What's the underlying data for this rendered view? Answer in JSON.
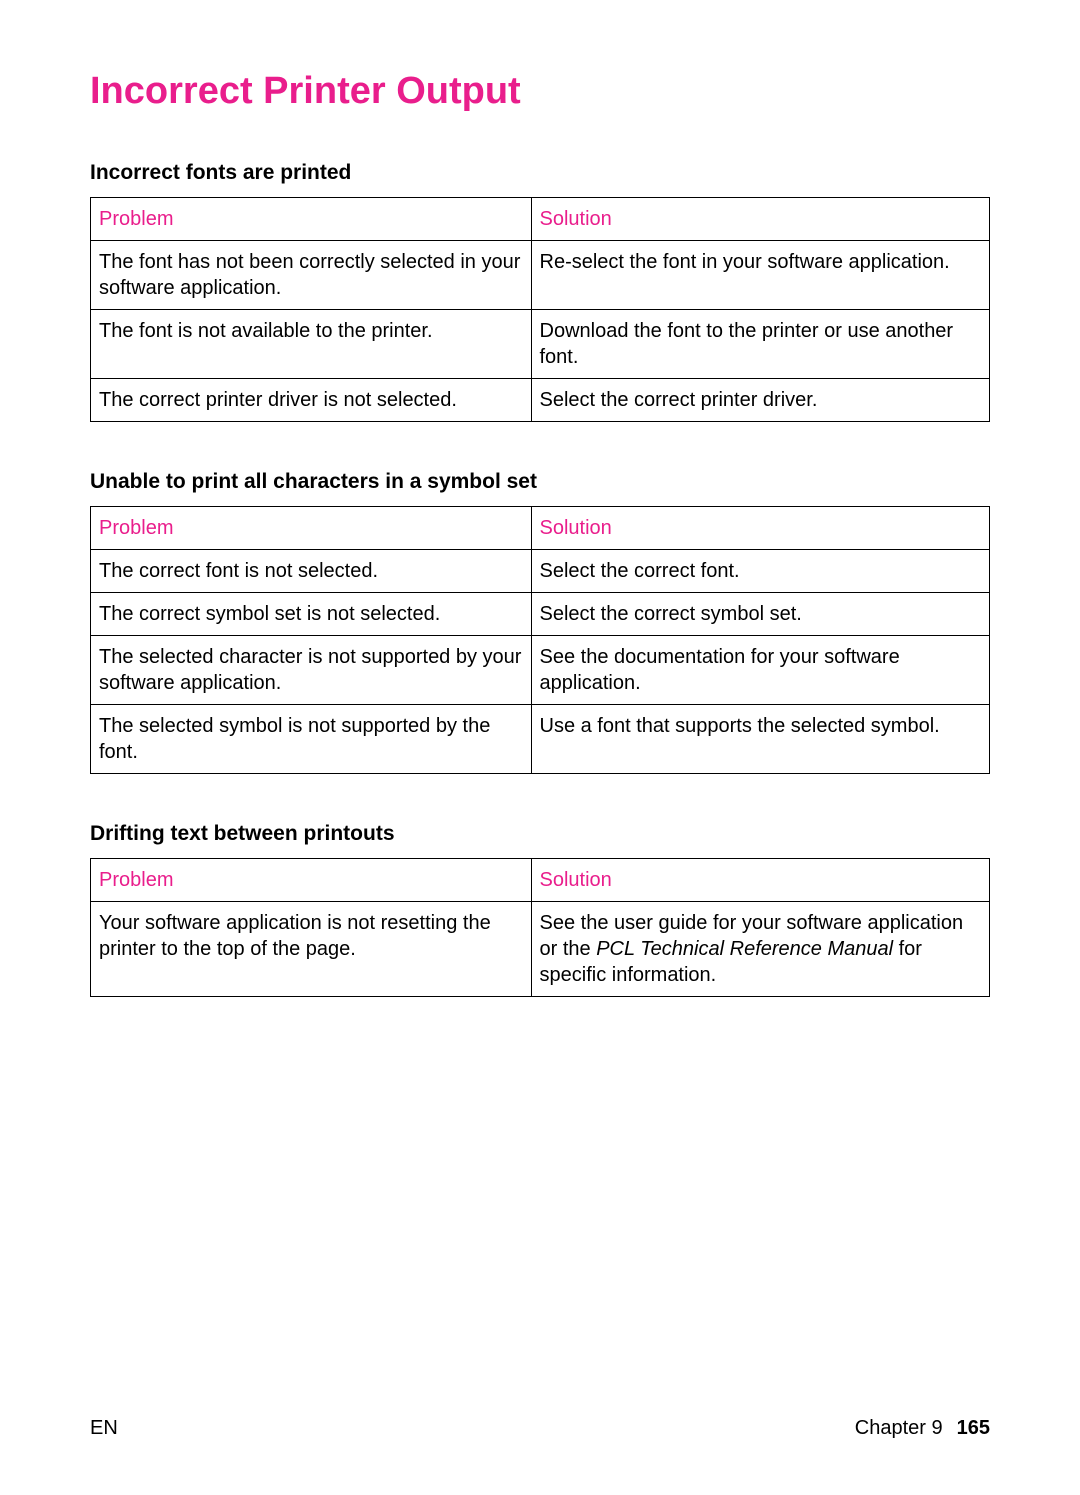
{
  "colors": {
    "accent": "#e91e8c",
    "text": "#000000",
    "border": "#000000",
    "background": "#ffffff"
  },
  "title": "Incorrect Printer Output",
  "sections": [
    {
      "heading": "Incorrect fonts are printed",
      "header": {
        "problem": "Problem",
        "solution": "Solution"
      },
      "rows": [
        {
          "problem": "The font has not been correctly selected in your software application.",
          "solution": "Re-select the font in your software application."
        },
        {
          "problem": "The font is not available to the printer.",
          "solution": "Download the font to the printer or use another font."
        },
        {
          "problem": "The correct printer driver is not selected.",
          "solution": "Select the correct printer driver."
        }
      ]
    },
    {
      "heading": "Unable to print all characters in a symbol set",
      "header": {
        "problem": "Problem",
        "solution": "Solution"
      },
      "rows": [
        {
          "problem": "The correct font is not selected.",
          "solution": "Select the correct font."
        },
        {
          "problem": "The correct symbol set is not selected.",
          "solution": "Select the correct symbol set."
        },
        {
          "problem": "The selected character is not supported by your software application.",
          "solution": "See the documentation for your software application."
        },
        {
          "problem": "The selected symbol is not supported by the font.",
          "solution": "Use a font that supports the selected symbol."
        }
      ]
    },
    {
      "heading": "Drifting text between printouts",
      "header": {
        "problem": "Problem",
        "solution": "Solution"
      },
      "rows": [
        {
          "problem": "Your software application is not resetting the printer to the top of the page.",
          "solution_pre": "See the user guide for your software application or the ",
          "solution_italic": "PCL Technical Reference Manual",
          "solution_post": " for specific information."
        }
      ]
    }
  ],
  "footer": {
    "left": "EN",
    "chapter": "Chapter 9",
    "page": "165"
  }
}
